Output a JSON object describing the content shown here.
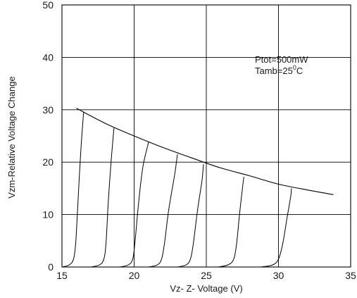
{
  "chart_data": {
    "type": "line",
    "title": "",
    "xlabel": "Vz- Z- Voltage (V)",
    "ylabel": "Vzm-Relative Voltage Change",
    "xlim": [
      15,
      35
    ],
    "ylim": [
      0,
      50
    ],
    "xticks": [
      "15",
      "20",
      "25",
      "30",
      "35"
    ],
    "yticks": [
      "0",
      "10",
      "20",
      "30",
      "40",
      "50"
    ],
    "grid": true,
    "annotations": {
      "ptot": "Ptot=500mW",
      "tamb_prefix": "Tamb=25",
      "tamb_sup": "0",
      "tamb_suffix": "C"
    },
    "series": [
      {
        "points": [
          [
            16.0,
            30.3
          ],
          [
            18.0,
            27.4
          ],
          [
            20.0,
            25.0
          ],
          [
            22.0,
            22.8
          ],
          [
            24.0,
            20.8
          ],
          [
            26.0,
            18.9
          ],
          [
            28.0,
            17.4
          ],
          [
            30.0,
            15.8
          ],
          [
            32.0,
            14.7
          ],
          [
            33.8,
            13.8
          ]
        ]
      },
      {
        "points": [
          [
            15.0,
            0.0
          ],
          [
            15.5,
            0.4
          ],
          [
            15.8,
            1.5
          ],
          [
            15.95,
            4.5
          ],
          [
            16.1,
            12.0
          ],
          [
            16.3,
            22.0
          ],
          [
            16.5,
            29.6
          ]
        ]
      },
      {
        "points": [
          [
            17.0,
            0.0
          ],
          [
            17.6,
            0.4
          ],
          [
            17.9,
            1.5
          ],
          [
            18.05,
            4.5
          ],
          [
            18.2,
            12.0
          ],
          [
            18.4,
            20.0
          ],
          [
            18.6,
            26.5
          ]
        ]
      },
      {
        "points": [
          [
            19.0,
            0.0
          ],
          [
            19.6,
            0.4
          ],
          [
            19.9,
            1.5
          ],
          [
            20.05,
            4.5
          ],
          [
            20.3,
            12.0
          ],
          [
            20.6,
            19.0
          ],
          [
            21.0,
            23.8
          ]
        ]
      },
      {
        "points": [
          [
            21.0,
            0.0
          ],
          [
            21.6,
            0.4
          ],
          [
            21.9,
            1.5
          ],
          [
            22.1,
            4.5
          ],
          [
            22.4,
            11.0
          ],
          [
            22.8,
            17.5
          ],
          [
            23.0,
            21.5
          ]
        ]
      },
      {
        "points": [
          [
            23.0,
            0.0
          ],
          [
            23.6,
            0.4
          ],
          [
            23.9,
            1.5
          ],
          [
            24.1,
            4.5
          ],
          [
            24.4,
            11.0
          ],
          [
            24.7,
            16.5
          ],
          [
            24.8,
            19.6
          ]
        ]
      },
      {
        "points": [
          [
            25.8,
            0.0
          ],
          [
            26.5,
            0.4
          ],
          [
            26.9,
            1.5
          ],
          [
            27.1,
            4.5
          ],
          [
            27.3,
            10.0
          ],
          [
            27.5,
            15.0
          ],
          [
            27.6,
            17.2
          ]
        ]
      },
      {
        "points": [
          [
            28.8,
            0.0
          ],
          [
            29.6,
            0.4
          ],
          [
            30.0,
            1.5
          ],
          [
            30.3,
            4.5
          ],
          [
            30.6,
            9.5
          ],
          [
            30.85,
            13.5
          ],
          [
            30.9,
            15.0
          ]
        ]
      }
    ]
  }
}
